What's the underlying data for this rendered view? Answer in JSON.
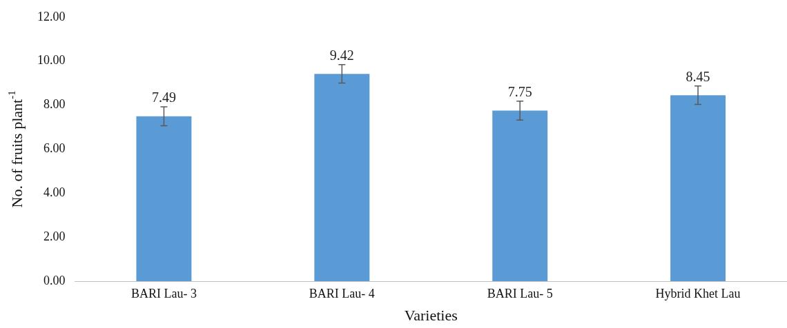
{
  "chart_data": {
    "type": "bar",
    "xlabel": "Varieties",
    "ylabel": "No. of fruits plant$^{-1}$",
    "categories": [
      "BARI Lau- 3",
      "BARI Lau- 4",
      "BARI Lau- 5",
      "Hybrid Khet Lau"
    ],
    "values": [
      7.49,
      9.42,
      7.75,
      8.45
    ],
    "errors": [
      0.43,
      0.42,
      0.43,
      0.42
    ],
    "color": "#5b9bd5",
    "ylim": [
      0,
      12
    ],
    "yticks": [
      {
        "value": 0,
        "label": "0.00"
      },
      {
        "value": 2,
        "label": "2.00"
      },
      {
        "value": 4,
        "label": "4.00"
      },
      {
        "value": 6,
        "label": "6.00"
      },
      {
        "value": 8,
        "label": "8.00"
      },
      {
        "value": 10,
        "label": "10.00"
      },
      {
        "value": 12,
        "label": "12.00"
      }
    ],
    "grid": false,
    "legend": false,
    "data_labels": true
  }
}
